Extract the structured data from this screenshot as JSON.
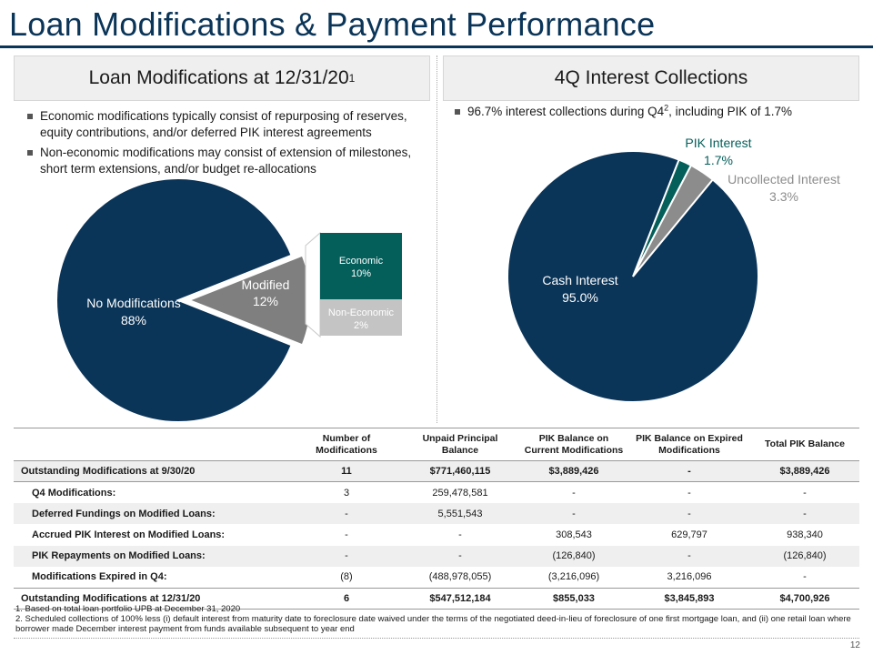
{
  "title": "Loan Modifications & Payment Performance",
  "left_panel": {
    "header": "Loan Modifications at 12/31/20",
    "header_sup": "1",
    "bullets": [
      "Economic modifications typically consist of repurposing of reserves, equity contributions, and/or deferred PIK interest agreements",
      "Non-economic modifications may consist of extension of milestones, short term extensions, and/or budget re-allocations"
    ]
  },
  "right_panel": {
    "header": "4Q Interest Collections",
    "bullet_pre": "96.7% interest collections during Q4",
    "bullet_sup": "2",
    "bullet_post": ", including PIK of 1.7%"
  },
  "chart_data": [
    {
      "type": "pie",
      "slices": [
        {
          "label": "No Modifications",
          "value_label": "88%",
          "value": 88,
          "color": "#0b3558"
        },
        {
          "label": "Modified",
          "value_label": "12%",
          "value": 12,
          "color": "#7f7f7f"
        }
      ],
      "breakdown": [
        {
          "label": "Economic",
          "value_label": "10%",
          "value": 10,
          "color": "#045f5b"
        },
        {
          "label": "Non-Economic",
          "value_label": "2%",
          "value": 2,
          "color": "#c4c4c4"
        }
      ]
    },
    {
      "type": "pie",
      "slices": [
        {
          "label": "Cash Interest",
          "value_label": "95.0%",
          "value": 95.0,
          "color": "#0b3558"
        },
        {
          "label": "PIK Interest",
          "value_label": "1.7%",
          "value": 1.7,
          "color": "#045f5b"
        },
        {
          "label": "Uncollected Interest",
          "value_label": "3.3%",
          "value": 3.3,
          "color": "#8c8c8c"
        }
      ]
    }
  ],
  "table": {
    "headers": [
      "",
      "Number of Modifications",
      "Unpaid Principal Balance",
      "PIK Balance on Current Modifications",
      "PIK Balance on Expired Modifications",
      "Total PIK Balance"
    ],
    "rows": [
      {
        "label": "Outstanding Modifications at 9/30/20",
        "cells": [
          "11",
          "$771,460,115",
          "$3,889,426",
          "-",
          "$3,889,426"
        ]
      },
      {
        "label": "Q4 Modifications:",
        "cells": [
          "3",
          "259,478,581",
          "-",
          "-",
          "-"
        ]
      },
      {
        "label": "Deferred Fundings on Modified Loans:",
        "cells": [
          "-",
          "5,551,543",
          "-",
          "-",
          "-"
        ]
      },
      {
        "label": "Accrued PIK Interest on Modified Loans:",
        "cells": [
          "-",
          "-",
          "308,543",
          "629,797",
          "938,340"
        ]
      },
      {
        "label": "PIK Repayments on Modified Loans:",
        "cells": [
          "-",
          "-",
          "(126,840)",
          "-",
          "(126,840)"
        ]
      },
      {
        "label": "Modifications Expired in Q4:",
        "cells": [
          "(8)",
          "(488,978,055)",
          "(3,216,096)",
          "3,216,096",
          "-"
        ]
      },
      {
        "label": "Outstanding Modifications at 12/31/20",
        "cells": [
          "6",
          "$547,512,184",
          "$855,033",
          "$3,845,893",
          "$4,700,926"
        ]
      }
    ]
  },
  "footnotes": [
    "1. Based on total loan portfolio UPB at December 31, 2020",
    "2. Scheduled collections of 100% less (i) default interest from maturity date to foreclosure date waived under the terms of the negotiated deed-in-lieu of foreclosure of one first mortgage loan, and (ii) one retail loan where borrower made December interest payment from funds available subsequent to year end"
  ],
  "page_number": "12"
}
